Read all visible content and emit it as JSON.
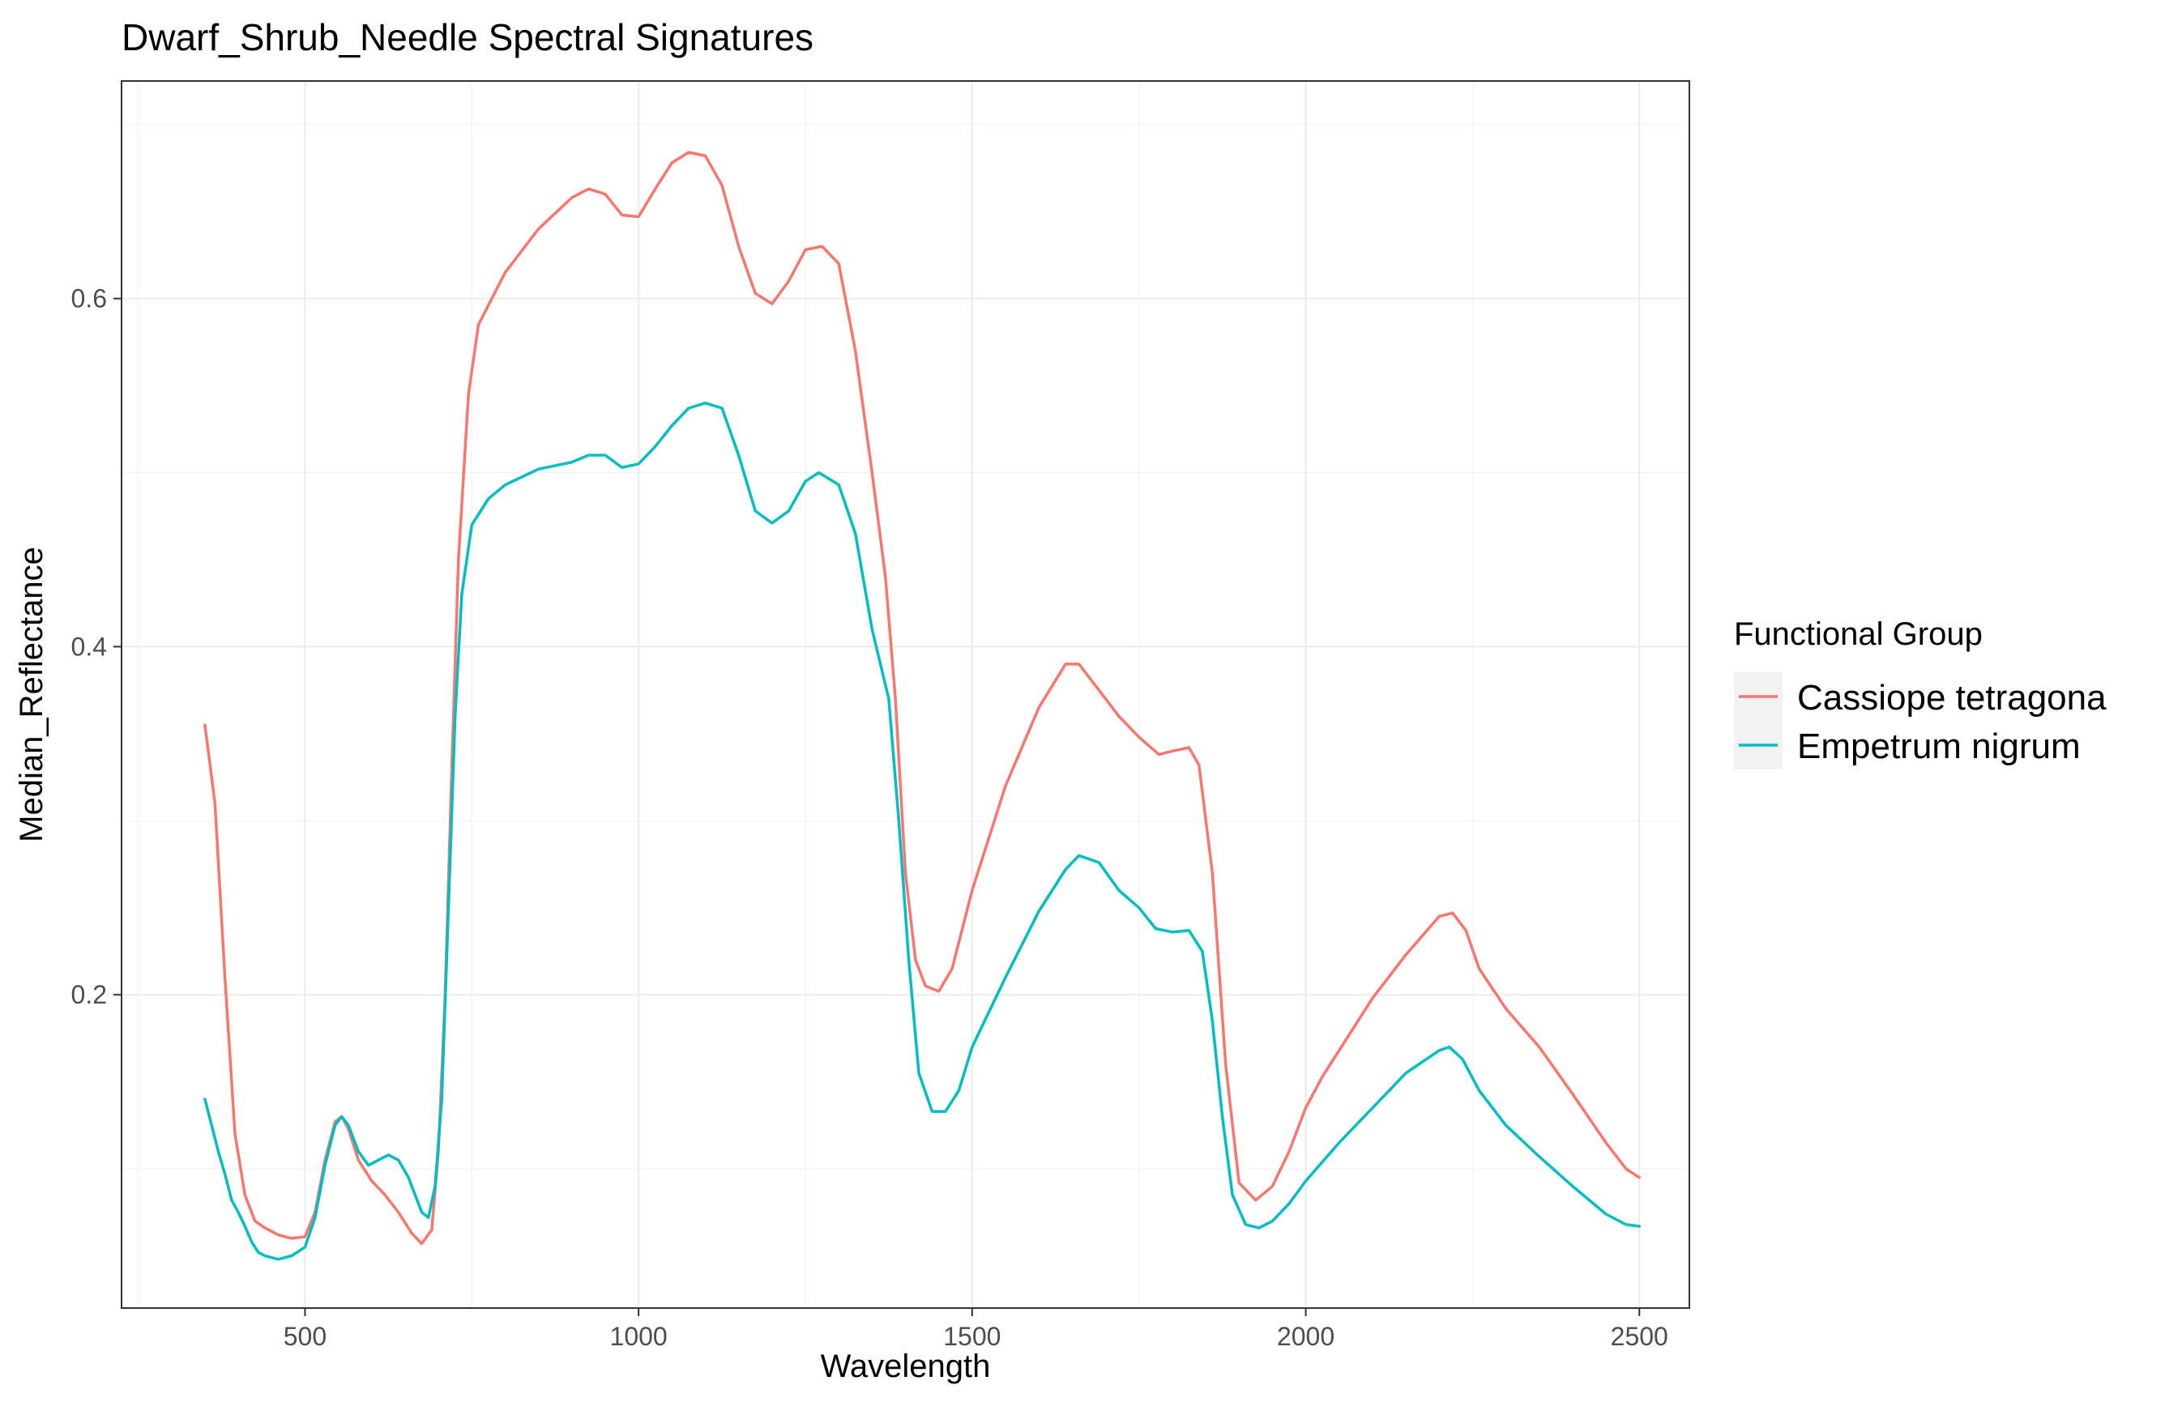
{
  "chart_data": {
    "type": "line",
    "title": "Dwarf_Shrub_Needle Spectral Signatures",
    "xlabel": "Wavelength",
    "ylabel": "Median_Reflectance",
    "xlim": [
      225,
      2575
    ],
    "ylim": [
      0.02,
      0.725
    ],
    "x_ticks": [
      500,
      1000,
      1500,
      2000,
      2500
    ],
    "y_ticks": [
      0.2,
      0.4,
      0.6
    ],
    "x_tick_labels": [
      "500",
      "1000",
      "1500",
      "2000",
      "2500"
    ],
    "y_tick_labels": [
      "0.2",
      "0.4",
      "0.6"
    ],
    "grid": true,
    "legend": {
      "title": "Functional Group",
      "position": "right"
    },
    "series": [
      {
        "name": "Cassiope tetragona",
        "color": "#F8766D",
        "points": [
          [
            350,
            0.355
          ],
          [
            365,
            0.31
          ],
          [
            380,
            0.21
          ],
          [
            395,
            0.12
          ],
          [
            410,
            0.085
          ],
          [
            425,
            0.07
          ],
          [
            440,
            0.066
          ],
          [
            460,
            0.062
          ],
          [
            480,
            0.06
          ],
          [
            500,
            0.061
          ],
          [
            515,
            0.075
          ],
          [
            530,
            0.105
          ],
          [
            545,
            0.127
          ],
          [
            555,
            0.13
          ],
          [
            565,
            0.123
          ],
          [
            580,
            0.105
          ],
          [
            600,
            0.093
          ],
          [
            620,
            0.085
          ],
          [
            640,
            0.075
          ],
          [
            660,
            0.063
          ],
          [
            675,
            0.057
          ],
          [
            690,
            0.065
          ],
          [
            700,
            0.11
          ],
          [
            710,
            0.2
          ],
          [
            720,
            0.33
          ],
          [
            730,
            0.45
          ],
          [
            745,
            0.545
          ],
          [
            760,
            0.585
          ],
          [
            800,
            0.615
          ],
          [
            850,
            0.64
          ],
          [
            900,
            0.658
          ],
          [
            925,
            0.663
          ],
          [
            950,
            0.66
          ],
          [
            975,
            0.648
          ],
          [
            1000,
            0.647
          ],
          [
            1025,
            0.663
          ],
          [
            1050,
            0.678
          ],
          [
            1075,
            0.684
          ],
          [
            1100,
            0.682
          ],
          [
            1125,
            0.665
          ],
          [
            1150,
            0.63
          ],
          [
            1175,
            0.603
          ],
          [
            1200,
            0.597
          ],
          [
            1225,
            0.61
          ],
          [
            1250,
            0.628
          ],
          [
            1275,
            0.63
          ],
          [
            1300,
            0.62
          ],
          [
            1325,
            0.57
          ],
          [
            1350,
            0.5
          ],
          [
            1370,
            0.44
          ],
          [
            1385,
            0.37
          ],
          [
            1400,
            0.27
          ],
          [
            1415,
            0.22
          ],
          [
            1430,
            0.205
          ],
          [
            1450,
            0.202
          ],
          [
            1470,
            0.215
          ],
          [
            1500,
            0.26
          ],
          [
            1550,
            0.32
          ],
          [
            1600,
            0.365
          ],
          [
            1640,
            0.39
          ],
          [
            1660,
            0.39
          ],
          [
            1690,
            0.375
          ],
          [
            1720,
            0.36
          ],
          [
            1750,
            0.348
          ],
          [
            1780,
            0.338
          ],
          [
            1800,
            0.34
          ],
          [
            1825,
            0.342
          ],
          [
            1840,
            0.332
          ],
          [
            1860,
            0.27
          ],
          [
            1880,
            0.16
          ],
          [
            1900,
            0.092
          ],
          [
            1925,
            0.082
          ],
          [
            1950,
            0.09
          ],
          [
            1975,
            0.11
          ],
          [
            2000,
            0.135
          ],
          [
            2025,
            0.153
          ],
          [
            2050,
            0.168
          ],
          [
            2100,
            0.198
          ],
          [
            2150,
            0.223
          ],
          [
            2200,
            0.245
          ],
          [
            2220,
            0.247
          ],
          [
            2240,
            0.237
          ],
          [
            2260,
            0.215
          ],
          [
            2300,
            0.192
          ],
          [
            2350,
            0.17
          ],
          [
            2400,
            0.143
          ],
          [
            2450,
            0.115
          ],
          [
            2480,
            0.1
          ],
          [
            2500,
            0.095
          ]
        ]
      },
      {
        "name": "Empetrum nigrum",
        "color": "#00BFC4",
        "points": [
          [
            350,
            0.14
          ],
          [
            360,
            0.125
          ],
          [
            370,
            0.11
          ],
          [
            380,
            0.097
          ],
          [
            390,
            0.082
          ],
          [
            400,
            0.075
          ],
          [
            410,
            0.067
          ],
          [
            420,
            0.058
          ],
          [
            430,
            0.052
          ],
          [
            440,
            0.05
          ],
          [
            460,
            0.048
          ],
          [
            480,
            0.05
          ],
          [
            500,
            0.055
          ],
          [
            515,
            0.072
          ],
          [
            530,
            0.102
          ],
          [
            545,
            0.125
          ],
          [
            555,
            0.13
          ],
          [
            565,
            0.125
          ],
          [
            580,
            0.11
          ],
          [
            595,
            0.102
          ],
          [
            610,
            0.105
          ],
          [
            625,
            0.108
          ],
          [
            640,
            0.105
          ],
          [
            655,
            0.095
          ],
          [
            665,
            0.085
          ],
          [
            675,
            0.075
          ],
          [
            685,
            0.072
          ],
          [
            695,
            0.09
          ],
          [
            705,
            0.14
          ],
          [
            715,
            0.25
          ],
          [
            725,
            0.36
          ],
          [
            735,
            0.43
          ],
          [
            750,
            0.47
          ],
          [
            775,
            0.485
          ],
          [
            800,
            0.493
          ],
          [
            850,
            0.502
          ],
          [
            900,
            0.506
          ],
          [
            925,
            0.51
          ],
          [
            950,
            0.51
          ],
          [
            975,
            0.503
          ],
          [
            1000,
            0.505
          ],
          [
            1025,
            0.515
          ],
          [
            1050,
            0.527
          ],
          [
            1075,
            0.537
          ],
          [
            1100,
            0.54
          ],
          [
            1125,
            0.537
          ],
          [
            1150,
            0.51
          ],
          [
            1175,
            0.478
          ],
          [
            1200,
            0.471
          ],
          [
            1225,
            0.478
          ],
          [
            1250,
            0.495
          ],
          [
            1270,
            0.5
          ],
          [
            1300,
            0.493
          ],
          [
            1325,
            0.465
          ],
          [
            1350,
            0.41
          ],
          [
            1375,
            0.37
          ],
          [
            1390,
            0.3
          ],
          [
            1405,
            0.22
          ],
          [
            1420,
            0.155
          ],
          [
            1440,
            0.133
          ],
          [
            1460,
            0.133
          ],
          [
            1480,
            0.145
          ],
          [
            1500,
            0.17
          ],
          [
            1550,
            0.21
          ],
          [
            1600,
            0.248
          ],
          [
            1640,
            0.272
          ],
          [
            1660,
            0.28
          ],
          [
            1690,
            0.276
          ],
          [
            1720,
            0.26
          ],
          [
            1750,
            0.25
          ],
          [
            1775,
            0.238
          ],
          [
            1800,
            0.236
          ],
          [
            1825,
            0.237
          ],
          [
            1845,
            0.225
          ],
          [
            1860,
            0.185
          ],
          [
            1875,
            0.13
          ],
          [
            1890,
            0.085
          ],
          [
            1910,
            0.068
          ],
          [
            1930,
            0.066
          ],
          [
            1950,
            0.07
          ],
          [
            1975,
            0.08
          ],
          [
            2000,
            0.093
          ],
          [
            2050,
            0.115
          ],
          [
            2100,
            0.135
          ],
          [
            2150,
            0.155
          ],
          [
            2200,
            0.168
          ],
          [
            2215,
            0.17
          ],
          [
            2235,
            0.163
          ],
          [
            2260,
            0.145
          ],
          [
            2300,
            0.125
          ],
          [
            2350,
            0.107
          ],
          [
            2400,
            0.09
          ],
          [
            2450,
            0.074
          ],
          [
            2480,
            0.068
          ],
          [
            2500,
            0.067
          ]
        ]
      }
    ]
  }
}
